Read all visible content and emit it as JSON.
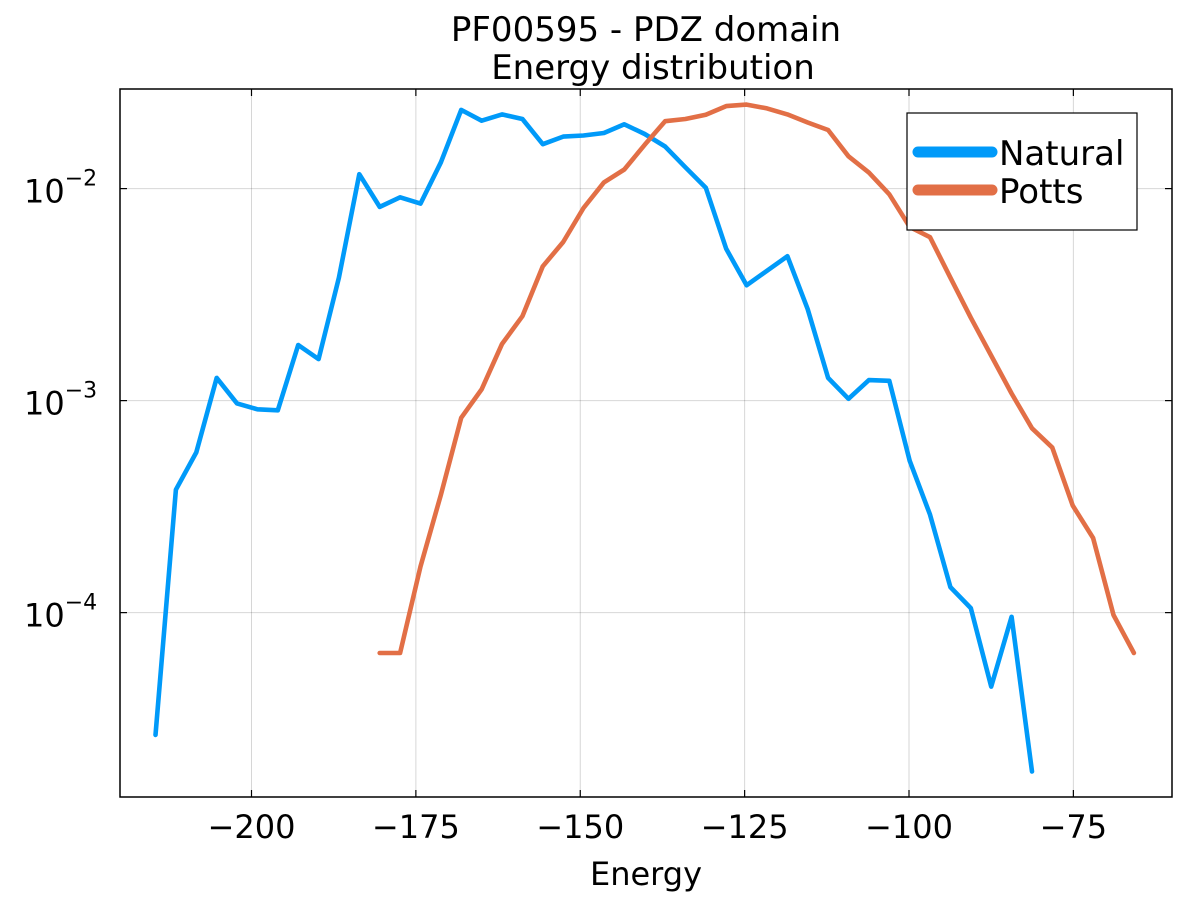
{
  "chart_data": {
    "type": "line",
    "title": [
      "PF00595 - PDZ domain",
      "Energy distribution"
    ],
    "xlabel": "Energy",
    "ylabel": "",
    "xlim": [
      -220,
      -60
    ],
    "ylim": [
      1.35e-05,
      0.0295
    ],
    "yscale": "log",
    "x_ticks": [
      -200,
      -175,
      -150,
      -125,
      -100,
      -75
    ],
    "x_tick_labels": [
      "−200",
      "−175",
      "−150",
      "−125",
      "−100",
      "−75"
    ],
    "y_ticks": [
      0.0001,
      0.001,
      0.01
    ],
    "y_tick_labels": [
      {
        "base": "10",
        "exp": "−4"
      },
      {
        "base": "10",
        "exp": "−3"
      },
      {
        "base": "10",
        "exp": "−2"
      }
    ],
    "grid": true,
    "legend_position": "top-right",
    "series": [
      {
        "name": "Natural",
        "color": "#009af9",
        "x": [
          -214.6,
          -211.5,
          -208.4,
          -205.3,
          -202.2,
          -199.1,
          -196.0,
          -192.9,
          -189.8,
          -186.7,
          -183.6,
          -180.5,
          -177.4,
          -174.3,
          -171.2,
          -168.1,
          -165.0,
          -161.9,
          -158.8,
          -155.7,
          -152.6,
          -149.5,
          -146.4,
          -143.3,
          -140.2,
          -137.1,
          -134.0,
          -130.9,
          -127.8,
          -124.7,
          -121.6,
          -118.5,
          -115.4,
          -112.3,
          -109.2,
          -106.1,
          -103.0,
          -99.9,
          -96.8,
          -93.7,
          -90.6,
          -87.5,
          -84.4,
          -81.3
        ],
        "y": [
          2.65e-05,
          0.00038,
          0.00057,
          0.00128,
          0.00097,
          0.00091,
          0.0009,
          0.00183,
          0.00157,
          0.0038,
          0.0117,
          0.0082,
          0.0091,
          0.0085,
          0.0133,
          0.0235,
          0.0209,
          0.0224,
          0.0213,
          0.0162,
          0.0176,
          0.0178,
          0.0183,
          0.0201,
          0.0181,
          0.0158,
          0.0126,
          0.0101,
          0.0052,
          0.0035,
          0.0041,
          0.0048,
          0.0027,
          0.00128,
          0.00102,
          0.00125,
          0.00124,
          0.00052,
          0.00029,
          0.000132,
          0.000105,
          4.48e-05,
          9.56e-05,
          1.78e-05
        ]
      },
      {
        "name": "Potts",
        "color": "#e26f46",
        "x": [
          -180.5,
          -177.4,
          -174.3,
          -171.2,
          -168.1,
          -165.0,
          -161.9,
          -158.8,
          -155.7,
          -152.6,
          -149.5,
          -146.4,
          -143.3,
          -140.2,
          -137.1,
          -134.0,
          -130.9,
          -127.8,
          -124.7,
          -121.6,
          -118.5,
          -115.4,
          -112.3,
          -109.2,
          -106.1,
          -103.0,
          -99.9,
          -96.8,
          -93.7,
          -90.6,
          -87.5,
          -84.4,
          -81.3,
          -78.2,
          -75.1,
          -72.0,
          -68.9,
          -65.8
        ],
        "y": [
          6.45e-05,
          6.45e-05,
          0.000165,
          0.00036,
          0.00083,
          0.00113,
          0.00185,
          0.0025,
          0.0043,
          0.0056,
          0.0081,
          0.0107,
          0.0123,
          0.0161,
          0.0208,
          0.0213,
          0.0223,
          0.0245,
          0.0249,
          0.0239,
          0.0224,
          0.0205,
          0.0189,
          0.0142,
          0.0119,
          0.0094,
          0.0066,
          0.0059,
          0.0038,
          0.00246,
          0.00163,
          0.00108,
          0.00074,
          0.0006,
          0.00032,
          0.000225,
          9.75e-05,
          6.45e-05
        ]
      }
    ]
  }
}
